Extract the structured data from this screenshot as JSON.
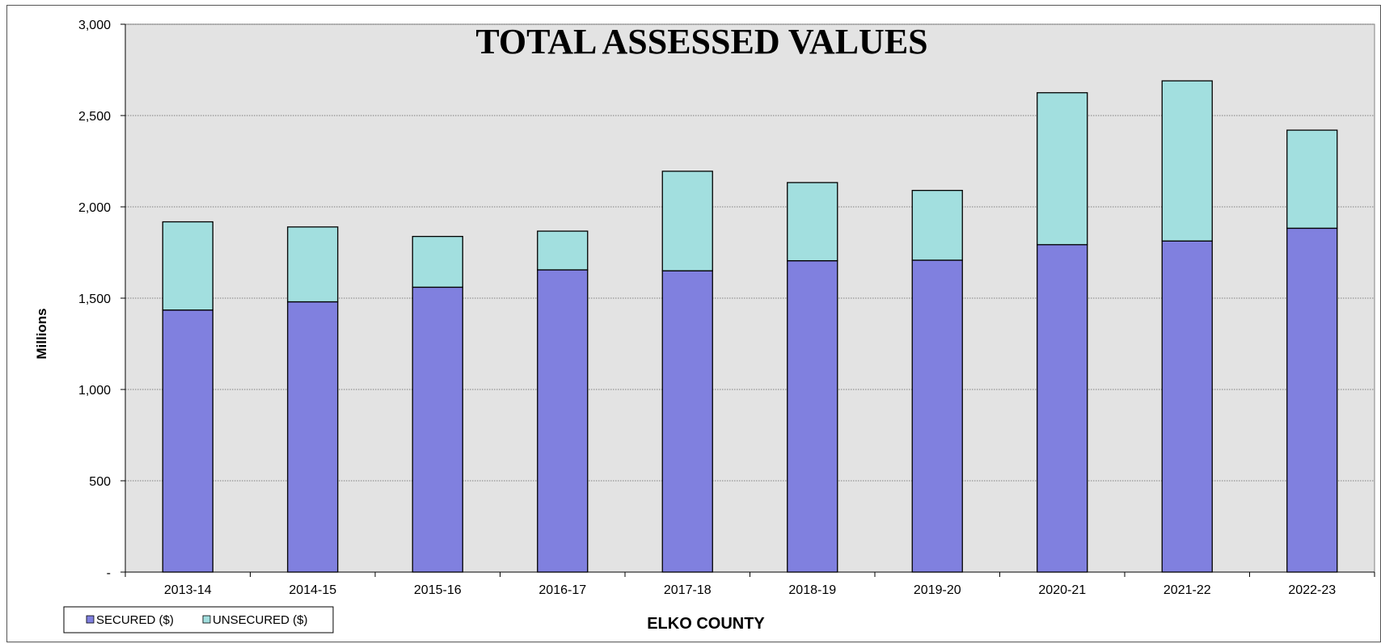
{
  "chart_data": {
    "type": "bar",
    "stacked": true,
    "title": "TOTAL ASSESSED VALUES",
    "xlabel": "ELKO COUNTY",
    "ylabel": "Millions",
    "ylim": [
      0,
      3000
    ],
    "yticks": [
      0,
      500,
      1000,
      1500,
      2000,
      2500,
      3000
    ],
    "ytick_labels": [
      "-",
      "500",
      "1,000",
      "1,500",
      "2,000",
      "2,500",
      "3,000"
    ],
    "grid": true,
    "legend_position": "bottom-left",
    "categories": [
      "2013-14",
      "2014-15",
      "2015-16",
      "2016-17",
      "2017-18",
      "2018-19",
      "2019-20",
      "2020-21",
      "2021-22",
      "2022-23"
    ],
    "series": [
      {
        "name": "SECURED ($)",
        "color": "#8080df",
        "values": [
          1435,
          1480,
          1560,
          1655,
          1650,
          1705,
          1708,
          1793,
          1813,
          1883
        ]
      },
      {
        "name": "UNSECURED ($)",
        "color": "#a2dfdf",
        "values": [
          483,
          410,
          278,
          212,
          545,
          428,
          382,
          832,
          877,
          537
        ]
      }
    ],
    "plot_background": "#e3e3e3",
    "gridline_color": "#606060"
  }
}
